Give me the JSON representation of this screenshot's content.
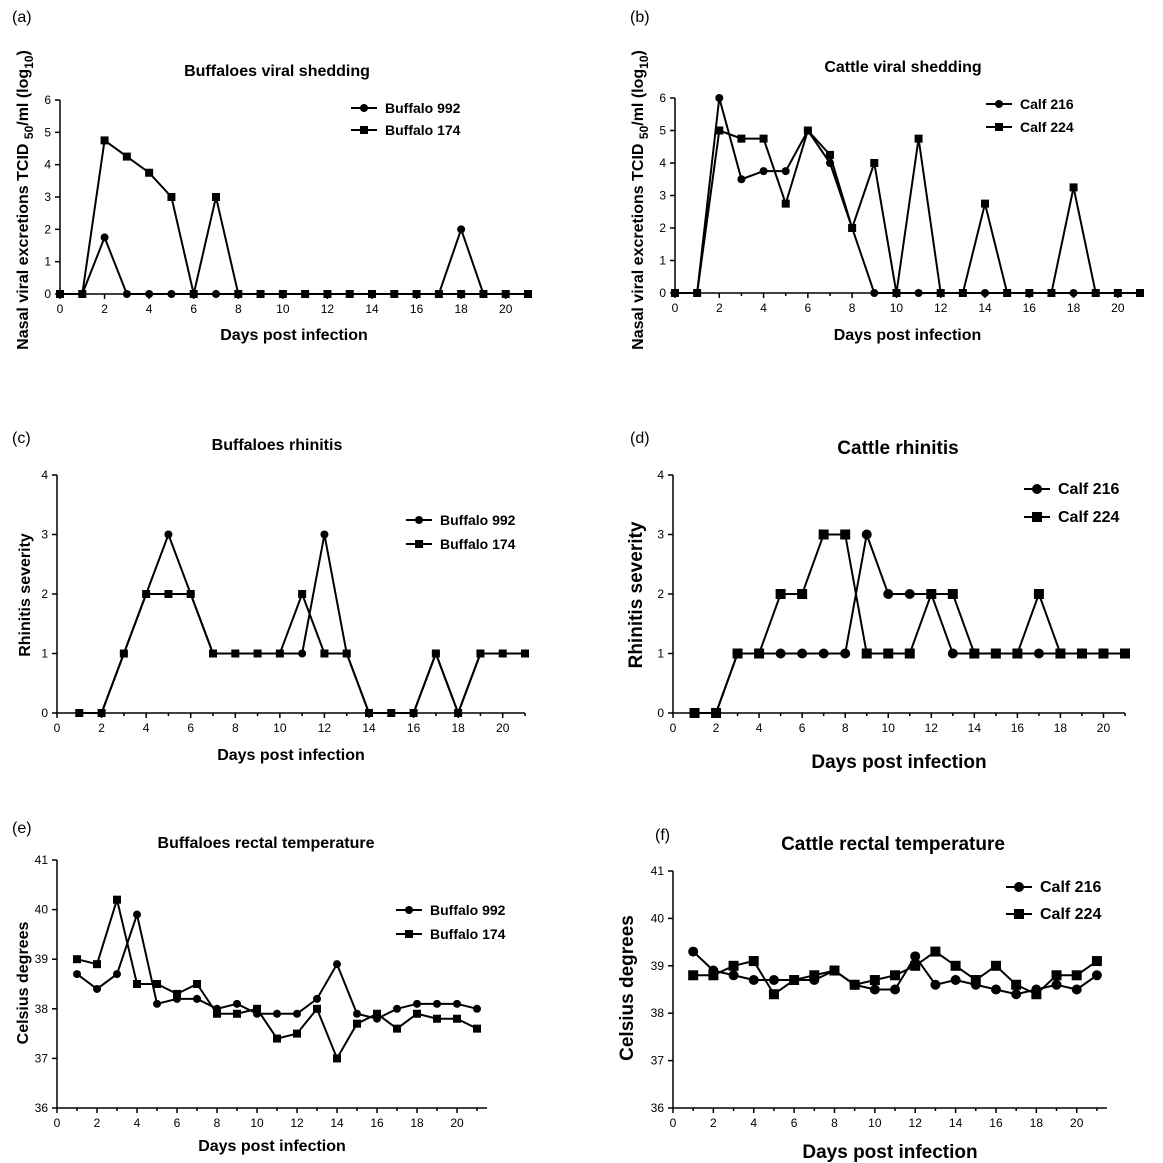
{
  "chart_data": [
    {
      "panel": "(a)",
      "type": "line",
      "title": "Buffaloes viral shedding",
      "xlabel": "Days post infection",
      "ylabel": "Nasal viral excretions TCID 50/ml (log10)",
      "xlim": [
        0,
        21
      ],
      "ylim": [
        0,
        6
      ],
      "xticks": [
        0,
        2,
        4,
        6,
        8,
        10,
        12,
        14,
        16,
        18,
        20
      ],
      "yticks": [
        0,
        1,
        2,
        3,
        4,
        5,
        6
      ],
      "legend_position": "top-right",
      "series": [
        {
          "name": "Buffalo 992",
          "marker": "circle",
          "x": [
            0,
            1,
            2,
            3,
            4,
            5,
            6,
            7,
            8,
            9,
            10,
            11,
            12,
            13,
            14,
            15,
            16,
            17,
            18,
            19,
            20,
            21
          ],
          "y": [
            0,
            0,
            1.75,
            0,
            0,
            0,
            0,
            0,
            0,
            0,
            0,
            0,
            0,
            0,
            0,
            0,
            0,
            0,
            2,
            0,
            0,
            0
          ]
        },
        {
          "name": "Buffalo 174",
          "marker": "square",
          "x": [
            0,
            1,
            2,
            3,
            4,
            5,
            6,
            7,
            8,
            9,
            10,
            11,
            12,
            13,
            14,
            15,
            16,
            17,
            18,
            19,
            20,
            21
          ],
          "y": [
            0,
            0,
            4.75,
            4.25,
            3.75,
            3,
            0,
            3,
            0,
            0,
            0,
            0,
            0,
            0,
            0,
            0,
            0,
            0,
            0,
            0,
            0,
            0
          ]
        }
      ]
    },
    {
      "panel": "(b)",
      "type": "line",
      "title": "Cattle viral shedding",
      "xlabel": "Days post infection",
      "ylabel": "Nasal viral excretions TCID 50/ml (log10)",
      "xlim": [
        0,
        21
      ],
      "ylim": [
        0,
        6
      ],
      "xticks": [
        0,
        2,
        4,
        6,
        8,
        10,
        12,
        14,
        16,
        18,
        20
      ],
      "yticks": [
        0,
        1,
        2,
        3,
        4,
        5,
        6
      ],
      "legend_position": "top-right",
      "series": [
        {
          "name": "Calf 216",
          "marker": "circle",
          "x": [
            0,
            1,
            2,
            3,
            4,
            5,
            6,
            7,
            8,
            9,
            10,
            11,
            12,
            13,
            14,
            15,
            16,
            17,
            18,
            19,
            20,
            21
          ],
          "y": [
            0,
            0,
            6,
            3.5,
            3.75,
            3.75,
            5,
            4,
            2,
            0,
            0,
            0,
            0,
            0,
            0,
            0,
            0,
            0,
            0,
            0,
            0,
            0
          ]
        },
        {
          "name": "Calf 224",
          "marker": "square",
          "x": [
            0,
            1,
            2,
            3,
            4,
            5,
            6,
            7,
            8,
            9,
            10,
            11,
            12,
            13,
            14,
            15,
            16,
            17,
            18,
            19,
            20,
            21
          ],
          "y": [
            0,
            0,
            5,
            4.75,
            4.75,
            2.75,
            5,
            4.25,
            2,
            4,
            0,
            4.75,
            0,
            0,
            2.75,
            0,
            0,
            0,
            3.25,
            0,
            0,
            0
          ]
        }
      ]
    },
    {
      "panel": "(c)",
      "type": "line",
      "title": "Buffaloes rhinitis",
      "xlabel": "Days post infection",
      "ylabel": "Rhinitis severity",
      "xlim": [
        0,
        21
      ],
      "ylim": [
        0,
        4
      ],
      "xticks": [
        0,
        2,
        4,
        6,
        8,
        10,
        12,
        14,
        16,
        18,
        20
      ],
      "yticks": [
        0,
        1,
        2,
        3,
        4
      ],
      "legend_position": "top-right",
      "series": [
        {
          "name": "Buffalo 992",
          "marker": "circle",
          "x": [
            1,
            2,
            3,
            4,
            5,
            6,
            7,
            8,
            9,
            10,
            11,
            12,
            13,
            14,
            15,
            16,
            17,
            18,
            19,
            20,
            21
          ],
          "y": [
            0,
            0,
            1,
            2,
            3,
            2,
            1,
            1,
            1,
            1,
            1,
            3,
            1,
            0,
            0,
            0,
            1,
            0,
            1,
            1,
            1
          ]
        },
        {
          "name": "Buffalo 174",
          "marker": "square",
          "x": [
            1,
            2,
            3,
            4,
            5,
            6,
            7,
            8,
            9,
            10,
            11,
            12,
            13,
            14,
            15,
            16,
            17,
            18,
            19,
            20,
            21
          ],
          "y": [
            0,
            0,
            1,
            2,
            2,
            2,
            1,
            1,
            1,
            1,
            2,
            1,
            1,
            0,
            0,
            0,
            1,
            0,
            1,
            1,
            1
          ]
        }
      ]
    },
    {
      "panel": "(d)",
      "type": "line",
      "title": "Cattle rhinitis",
      "xlabel": "Days post infection",
      "ylabel": "Rhinitis severity",
      "xlim": [
        0,
        21
      ],
      "ylim": [
        0,
        4
      ],
      "xticks": [
        0,
        2,
        4,
        6,
        8,
        10,
        12,
        14,
        16,
        18,
        20
      ],
      "yticks": [
        0,
        1,
        2,
        3,
        4
      ],
      "legend_position": "top-right",
      "series": [
        {
          "name": "Calf 216",
          "marker": "circle",
          "x": [
            1,
            2,
            3,
            4,
            5,
            6,
            7,
            8,
            9,
            10,
            11,
            12,
            13,
            14,
            15,
            16,
            17,
            18,
            19,
            20,
            21
          ],
          "y": [
            0,
            0,
            1,
            1,
            1,
            1,
            1,
            1,
            3,
            2,
            2,
            2,
            1,
            1,
            1,
            1,
            1,
            1,
            1,
            1,
            1
          ]
        },
        {
          "name": "Calf 224",
          "marker": "square",
          "x": [
            1,
            2,
            3,
            4,
            5,
            6,
            7,
            8,
            9,
            10,
            11,
            12,
            13,
            14,
            15,
            16,
            17,
            18,
            19,
            20,
            21
          ],
          "y": [
            0,
            0,
            1,
            1,
            2,
            2,
            3,
            3,
            1,
            1,
            1,
            2,
            2,
            1,
            1,
            1,
            2,
            1,
            1,
            1,
            1
          ]
        }
      ]
    },
    {
      "panel": "(e)",
      "type": "line",
      "title": "Buffaloes rectal temperature",
      "xlabel": "Days post infection",
      "ylabel": "Celsius degrees",
      "xlim": [
        0,
        21.5
      ],
      "ylim": [
        36,
        41
      ],
      "xticks": [
        0,
        2,
        4,
        6,
        8,
        10,
        12,
        14,
        16,
        18,
        20
      ],
      "yticks": [
        36,
        37,
        38,
        39,
        40,
        41
      ],
      "legend_position": "right",
      "series": [
        {
          "name": "Buffalo 992",
          "marker": "circle",
          "x": [
            1,
            2,
            3,
            4,
            5,
            6,
            7,
            8,
            9,
            10,
            11,
            12,
            13,
            14,
            15,
            16,
            17,
            18,
            19,
            20,
            21
          ],
          "y": [
            38.7,
            38.4,
            38.7,
            39.9,
            38.1,
            38.2,
            38.2,
            38.0,
            38.1,
            37.9,
            37.9,
            37.9,
            38.2,
            38.9,
            37.9,
            37.8,
            38.0,
            38.1,
            38.1,
            38.1,
            38.0
          ]
        },
        {
          "name": "Buffalo 174",
          "marker": "square",
          "x": [
            1,
            2,
            3,
            4,
            5,
            6,
            7,
            8,
            9,
            10,
            11,
            12,
            13,
            14,
            15,
            16,
            17,
            18,
            19,
            20,
            21
          ],
          "y": [
            39.0,
            38.9,
            40.2,
            38.5,
            38.5,
            38.3,
            38.5,
            37.9,
            37.9,
            38.0,
            37.4,
            37.5,
            38.0,
            37.0,
            37.7,
            37.9,
            37.6,
            37.9,
            37.8,
            37.8,
            37.6
          ]
        }
      ]
    },
    {
      "panel": "(f)",
      "type": "line",
      "title": "Cattle rectal temperature",
      "xlabel": "Days post infection",
      "ylabel": "Celsius degrees",
      "xlim": [
        0,
        21.5
      ],
      "ylim": [
        36,
        41
      ],
      "xticks": [
        0,
        2,
        4,
        6,
        8,
        10,
        12,
        14,
        16,
        18,
        20
      ],
      "yticks": [
        36,
        37,
        38,
        39,
        40,
        41
      ],
      "legend_position": "top-right",
      "series": [
        {
          "name": "Calf 216",
          "marker": "circle",
          "x": [
            1,
            2,
            3,
            4,
            5,
            6,
            7,
            8,
            9,
            10,
            11,
            12,
            13,
            14,
            15,
            16,
            17,
            18,
            19,
            20,
            21
          ],
          "y": [
            39.3,
            38.9,
            38.8,
            38.7,
            38.7,
            38.7,
            38.7,
            38.9,
            38.6,
            38.5,
            38.5,
            39.2,
            38.6,
            38.7,
            38.6,
            38.5,
            38.4,
            38.5,
            38.6,
            38.5,
            38.8
          ]
        },
        {
          "name": "Calf 224",
          "marker": "square",
          "x": [
            1,
            2,
            3,
            4,
            5,
            6,
            7,
            8,
            9,
            10,
            11,
            12,
            13,
            14,
            15,
            16,
            17,
            18,
            19,
            20,
            21
          ],
          "y": [
            38.8,
            38.8,
            39.0,
            39.1,
            38.4,
            38.7,
            38.8,
            38.9,
            38.6,
            38.7,
            38.8,
            39.0,
            39.3,
            39.0,
            38.7,
            39.0,
            38.6,
            38.4,
            38.8,
            38.8,
            39.1
          ]
        }
      ]
    }
  ]
}
